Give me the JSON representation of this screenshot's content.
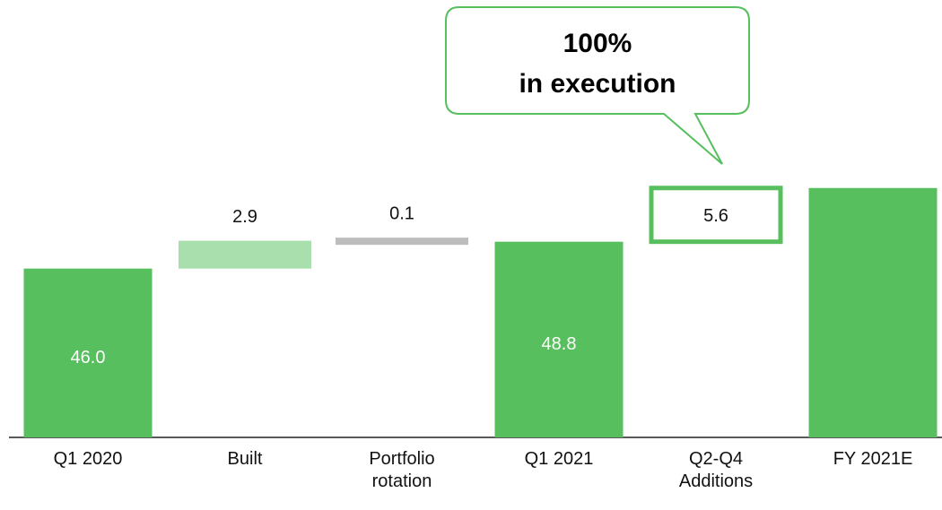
{
  "chart_data": {
    "type": "waterfall",
    "categories": [
      "Q1 2020",
      "Built",
      "Portfolio rotation",
      "Q1 2021",
      "Q2-Q4 Additions",
      "FY 2021E"
    ],
    "values": [
      46.0,
      2.9,
      0.1,
      48.8,
      5.6,
      54.4
    ],
    "value_labels": [
      "46.0",
      "2.9",
      "0.1",
      "48.8",
      "5.6",
      null
    ],
    "kinds": [
      "total",
      "increase",
      "decrease",
      "total",
      "planned",
      "total"
    ],
    "colors": {
      "total": "#57bf5d",
      "increase": "#a8dfac",
      "decrease": "#bdbdbd",
      "planned": "#57bf5d"
    },
    "annotation": [
      "100%",
      "in execution"
    ],
    "ylim": [
      28.4,
      74
    ]
  }
}
